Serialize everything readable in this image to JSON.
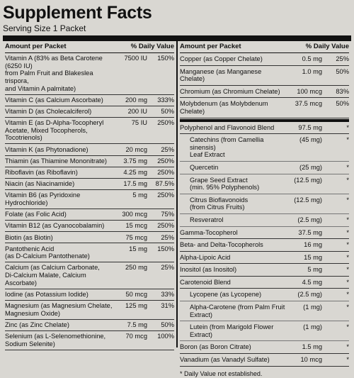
{
  "header": {
    "title": "Supplement Facts",
    "serving_size": "Serving Size 1 Packet"
  },
  "left": {
    "col_amount": "Amount per Packet",
    "col_dv": "% Daily Value",
    "rows": [
      {
        "name": [
          "Vitamin A (83% as Beta Carotene (6250 IU)",
          "from Palm Fruit and Blakeslea trispora,",
          "and Vitamin A palmitate)"
        ],
        "amount": "7500 IU",
        "dv": "150%"
      },
      {
        "name": [
          "Vitamin C (as Calcium Ascorbate)"
        ],
        "amount": "200 mg",
        "dv": "333%"
      },
      {
        "name": [
          "Vitamin D (as Cholecalciferol)"
        ],
        "amount": "200 IU",
        "dv": "50%"
      },
      {
        "name": [
          "Vitamin E (as D-Alpha-Tocopheryl",
          "Acetate, Mixed Tocopherols, Tocotrienols)"
        ],
        "amount": "75 IU",
        "dv": "250%"
      },
      {
        "name": [
          "Vitamin K (as Phytonadione)"
        ],
        "amount": "20 mcg",
        "dv": "25%"
      },
      {
        "name": [
          "Thiamin (as Thiamine Mononitrate)"
        ],
        "amount": "3.75 mg",
        "dv": "250%"
      },
      {
        "name": [
          "Riboflavin (as Riboflavin)"
        ],
        "amount": "4.25 mg",
        "dv": "250%"
      },
      {
        "name": [
          "Niacin (as Niacinamide)"
        ],
        "amount": "17.5 mg",
        "dv": "87.5%"
      },
      {
        "name": [
          "Vitamin B6 (as Pyridoxine Hydrochloride)"
        ],
        "amount": "5 mg",
        "dv": "250%"
      },
      {
        "name": [
          "Folate (as Folic Acid)"
        ],
        "amount": "300 mcg",
        "dv": "75%"
      },
      {
        "name": [
          "Vitamin B12 (as Cyanocobalamin)"
        ],
        "amount": "15 mcg",
        "dv": "250%"
      },
      {
        "name": [
          "Biotin (as Biotin)"
        ],
        "amount": "75 mcg",
        "dv": "25%"
      },
      {
        "name": [
          "Pantothenic Acid",
          "(as D-Calcium Pantothenate)"
        ],
        "amount": "15 mg",
        "dv": "150%"
      },
      {
        "name": [
          "Calcium (as Calcium Carbonate,",
          "Di-Calcium Malate, Calcium Ascorbate)"
        ],
        "amount": "250 mg",
        "dv": "25%"
      },
      {
        "name": [
          "Iodine (as Potassium Iodide)"
        ],
        "amount": "50 mcg",
        "dv": "33%"
      },
      {
        "name": [
          "Magnesium (as Magnesium Chelate,",
          "Magnesium Oxide)"
        ],
        "amount": "125 mg",
        "dv": "31%"
      },
      {
        "name": [
          "Zinc (as Zinc Chelate)"
        ],
        "amount": "7.5 mg",
        "dv": "50%"
      },
      {
        "name": [
          "Selenium (as L-Selenomethionine,",
          "Sodium Selenite)"
        ],
        "amount": "70 mcg",
        "dv": "100%"
      }
    ]
  },
  "right": {
    "col_amount": "Amount per Packet",
    "col_dv": "% Daily Value",
    "minerals": [
      {
        "name": [
          "Copper (as Copper Chelate)"
        ],
        "amount": "0.5 mg",
        "dv": "25%"
      },
      {
        "name": [
          "Manganese (as Manganese Chelate)"
        ],
        "amount": "1.0 mg",
        "dv": "50%"
      },
      {
        "name": [
          "Chromium (as Chromium Chelate)"
        ],
        "amount": "100 mcg",
        "dv": "83%"
      },
      {
        "name": [
          "Molybdenum (as Molybdenum Chelate)"
        ],
        "amount": "37.5 mcg",
        "dv": "50%"
      }
    ],
    "others": [
      {
        "name": [
          "Polyphenol and Flavonoid Blend"
        ],
        "amount": "97.5 mg",
        "dv": "*",
        "components": [
          {
            "name": [
              "Catechins (from Camellia sinensis)",
              "Leaf Extract"
            ],
            "amount": "(45 mg)",
            "dv": "*"
          },
          {
            "name": [
              "Quercetin"
            ],
            "amount": "(25 mg)",
            "dv": "*"
          },
          {
            "name": [
              "Grape Seed Extract",
              "(min. 95% Polyphenols)"
            ],
            "amount": "(12.5 mg)",
            "dv": "*"
          },
          {
            "name": [
              "Citrus Bioflavonoids",
              "(from Citrus Fruits)"
            ],
            "amount": "(12.5 mg)",
            "dv": "*"
          },
          {
            "name": [
              "Resveratrol"
            ],
            "amount": "(2.5 mg)",
            "dv": "*"
          }
        ]
      },
      {
        "name": [
          "Gamma-Tocopherol"
        ],
        "amount": "37.5 mg",
        "dv": "*"
      },
      {
        "name": [
          "Beta- and Delta-Tocopherols"
        ],
        "amount": "16 mg",
        "dv": "*"
      },
      {
        "name": [
          "Alpha-Lipoic Acid"
        ],
        "amount": "15 mg",
        "dv": "*"
      },
      {
        "name": [
          "Inositol (as Inositol)"
        ],
        "amount": "5 mg",
        "dv": "*"
      },
      {
        "name": [
          "Carotenoid Blend"
        ],
        "amount": "4.5 mg",
        "dv": "*",
        "components": [
          {
            "name": [
              "Lycopene (as Lycopene)"
            ],
            "amount": "(2.5 mg)",
            "dv": "*"
          },
          {
            "name": [
              "Alpha-Carotene (from Palm Fruit Extract)"
            ],
            "amount": "(1 mg)",
            "dv": "*"
          },
          {
            "name": [
              "Lutein (from Marigold Flower Extract)"
            ],
            "amount": "(1 mg)",
            "dv": "*"
          }
        ]
      },
      {
        "name": [
          "Boron (as Boron Citrate)"
        ],
        "amount": "1.5 mg",
        "dv": "*"
      },
      {
        "name": [
          "Vanadium (as Vanadyl Sulfate)"
        ],
        "amount": "10 mcg",
        "dv": "*"
      }
    ],
    "footnote": "* Daily Value not established."
  }
}
